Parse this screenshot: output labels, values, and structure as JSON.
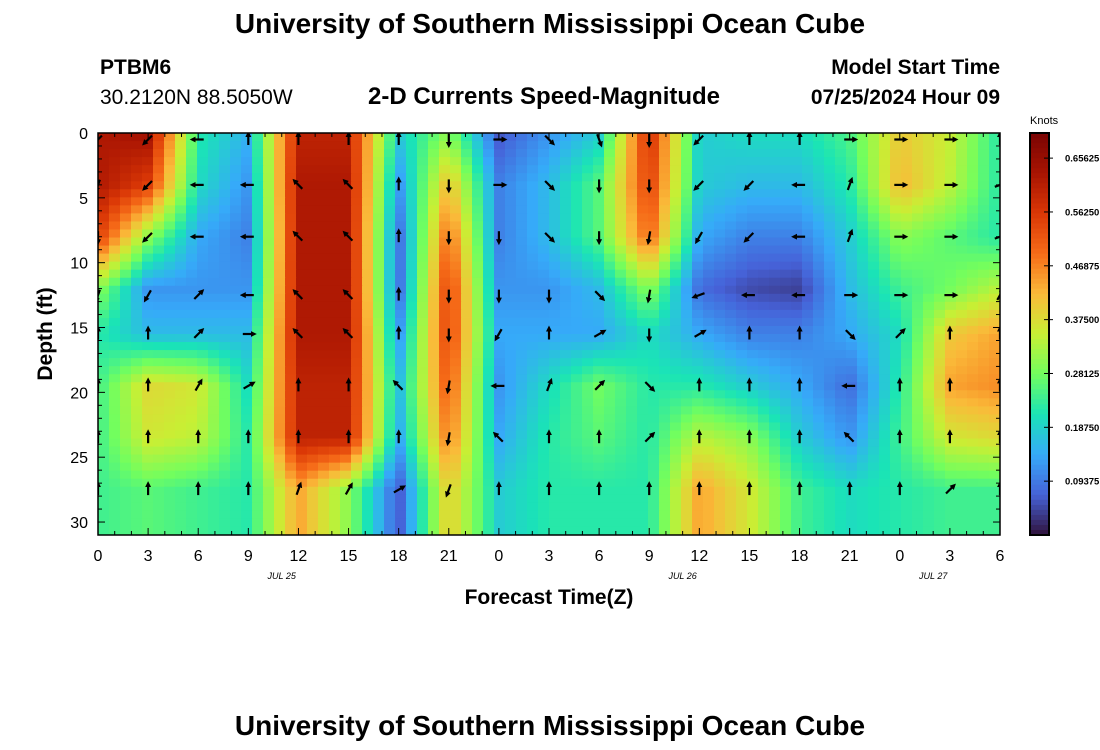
{
  "header": {
    "title": "University of Southern Mississippi Ocean Cube",
    "station_id": "PTBM6",
    "station_coords": "30.2120N  88.5050W",
    "plot_title": "2-D Currents Speed-Magnitude",
    "model_start_label": "Model Start Time",
    "model_start_value": "07/25/2024 Hour 09"
  },
  "footer": {
    "next_title": "University of Southern Mississippi Ocean Cube"
  },
  "chart_data": {
    "type": "heatmap",
    "title": "2-D Currents Speed-Magnitude",
    "xlabel": "Forecast Time(Z)",
    "ylabel": "Depth (ft)",
    "colorbar_label": "Knots",
    "x_hours": [
      0,
      3,
      6,
      9,
      12,
      15,
      18,
      21,
      24,
      27,
      30,
      33,
      36,
      39,
      42,
      45,
      48,
      51,
      54
    ],
    "x_tick_labels": [
      "0",
      "3",
      "6",
      "9",
      "12",
      "15",
      "18",
      "21",
      "0",
      "3",
      "6",
      "9",
      "12",
      "15",
      "18",
      "21",
      "0",
      "3",
      "6"
    ],
    "date_labels": [
      {
        "text": "JUL 25",
        "hour": 11
      },
      {
        "text": "JUL 26",
        "hour": 35
      },
      {
        "text": "JUL 27",
        "hour": 50
      }
    ],
    "depth_ft": [
      0,
      4,
      8,
      12,
      15.5,
      19.5,
      23.5,
      27.5
    ],
    "y_ticks": [
      0,
      5,
      10,
      15,
      20,
      25,
      30
    ],
    "ylim": [
      0,
      31
    ],
    "xlim": [
      0,
      54
    ],
    "colorbar_ticks": [
      "0.65625",
      "0.56250",
      "0.46875",
      "0.37500",
      "0.28125",
      "0.18750",
      "0.09375"
    ],
    "color_range": [
      0.0,
      0.7
    ],
    "speed_knots": [
      [
        0.62,
        0.64,
        0.22,
        0.15,
        0.6,
        0.6,
        0.18,
        0.3,
        0.06,
        0.12,
        0.18,
        0.58,
        0.18,
        0.2,
        0.2,
        0.25,
        0.4,
        0.35,
        0.22
      ],
      [
        0.62,
        0.55,
        0.2,
        0.12,
        0.62,
        0.62,
        0.12,
        0.42,
        0.1,
        0.16,
        0.26,
        0.55,
        0.18,
        0.16,
        0.16,
        0.22,
        0.42,
        0.34,
        0.22
      ],
      [
        0.55,
        0.3,
        0.14,
        0.1,
        0.62,
        0.62,
        0.08,
        0.5,
        0.1,
        0.16,
        0.26,
        0.5,
        0.14,
        0.1,
        0.1,
        0.18,
        0.3,
        0.26,
        0.22
      ],
      [
        0.3,
        0.12,
        0.12,
        0.12,
        0.62,
        0.62,
        0.08,
        0.55,
        0.12,
        0.12,
        0.16,
        0.3,
        0.08,
        0.05,
        0.04,
        0.16,
        0.24,
        0.28,
        0.34
      ],
      [
        0.22,
        0.16,
        0.16,
        0.16,
        0.62,
        0.62,
        0.12,
        0.55,
        0.14,
        0.14,
        0.14,
        0.2,
        0.14,
        0.1,
        0.1,
        0.14,
        0.2,
        0.4,
        0.44
      ],
      [
        0.24,
        0.38,
        0.36,
        0.2,
        0.6,
        0.6,
        0.16,
        0.52,
        0.12,
        0.2,
        0.28,
        0.22,
        0.22,
        0.18,
        0.14,
        0.08,
        0.22,
        0.44,
        0.46
      ],
      [
        0.24,
        0.36,
        0.34,
        0.22,
        0.6,
        0.6,
        0.14,
        0.48,
        0.14,
        0.22,
        0.26,
        0.22,
        0.34,
        0.3,
        0.18,
        0.12,
        0.24,
        0.36,
        0.38
      ],
      [
        0.24,
        0.26,
        0.24,
        0.22,
        0.44,
        0.3,
        0.06,
        0.4,
        0.18,
        0.22,
        0.22,
        0.22,
        0.44,
        0.36,
        0.24,
        0.2,
        0.22,
        0.24,
        0.24
      ]
    ],
    "arrow_depth_ft": [
      0.5,
      4,
      8,
      12.5,
      15.5,
      19.5,
      23.5,
      27.5
    ],
    "arrow_hours": [
      0,
      3,
      6,
      9,
      12,
      15,
      18,
      21,
      24,
      27,
      30,
      33,
      36,
      39,
      42,
      45,
      48,
      51,
      54
    ],
    "arrow_direction_deg": [
      [
        225,
        225,
        270,
        0,
        0,
        0,
        0,
        180,
        90,
        135,
        160,
        180,
        225,
        0,
        0,
        90,
        90,
        90,
        0
      ],
      [
        200,
        225,
        270,
        270,
        315,
        315,
        0,
        180,
        90,
        135,
        180,
        180,
        225,
        225,
        270,
        20,
        90,
        90,
        70
      ],
      [
        180,
        225,
        270,
        270,
        315,
        315,
        0,
        180,
        180,
        135,
        180,
        190,
        210,
        225,
        270,
        20,
        90,
        90,
        70
      ],
      [
        200,
        210,
        45,
        270,
        315,
        315,
        0,
        180,
        180,
        180,
        135,
        190,
        250,
        270,
        270,
        90,
        90,
        90,
        30
      ],
      [
        0,
        0,
        45,
        90,
        315,
        315,
        0,
        180,
        210,
        0,
        60,
        180,
        60,
        0,
        0,
        135,
        45,
        0,
        0
      ],
      [
        0,
        0,
        30,
        60,
        0,
        0,
        315,
        190,
        270,
        20,
        45,
        135,
        0,
        0,
        0,
        270,
        0,
        0,
        0
      ],
      [
        0,
        0,
        0,
        0,
        0,
        0,
        0,
        190,
        315,
        0,
        0,
        45,
        0,
        0,
        0,
        315,
        0,
        0,
        0
      ],
      [
        0,
        0,
        0,
        0,
        20,
        30,
        60,
        200,
        0,
        0,
        0,
        0,
        0,
        0,
        0,
        0,
        0,
        45,
        0
      ]
    ]
  }
}
